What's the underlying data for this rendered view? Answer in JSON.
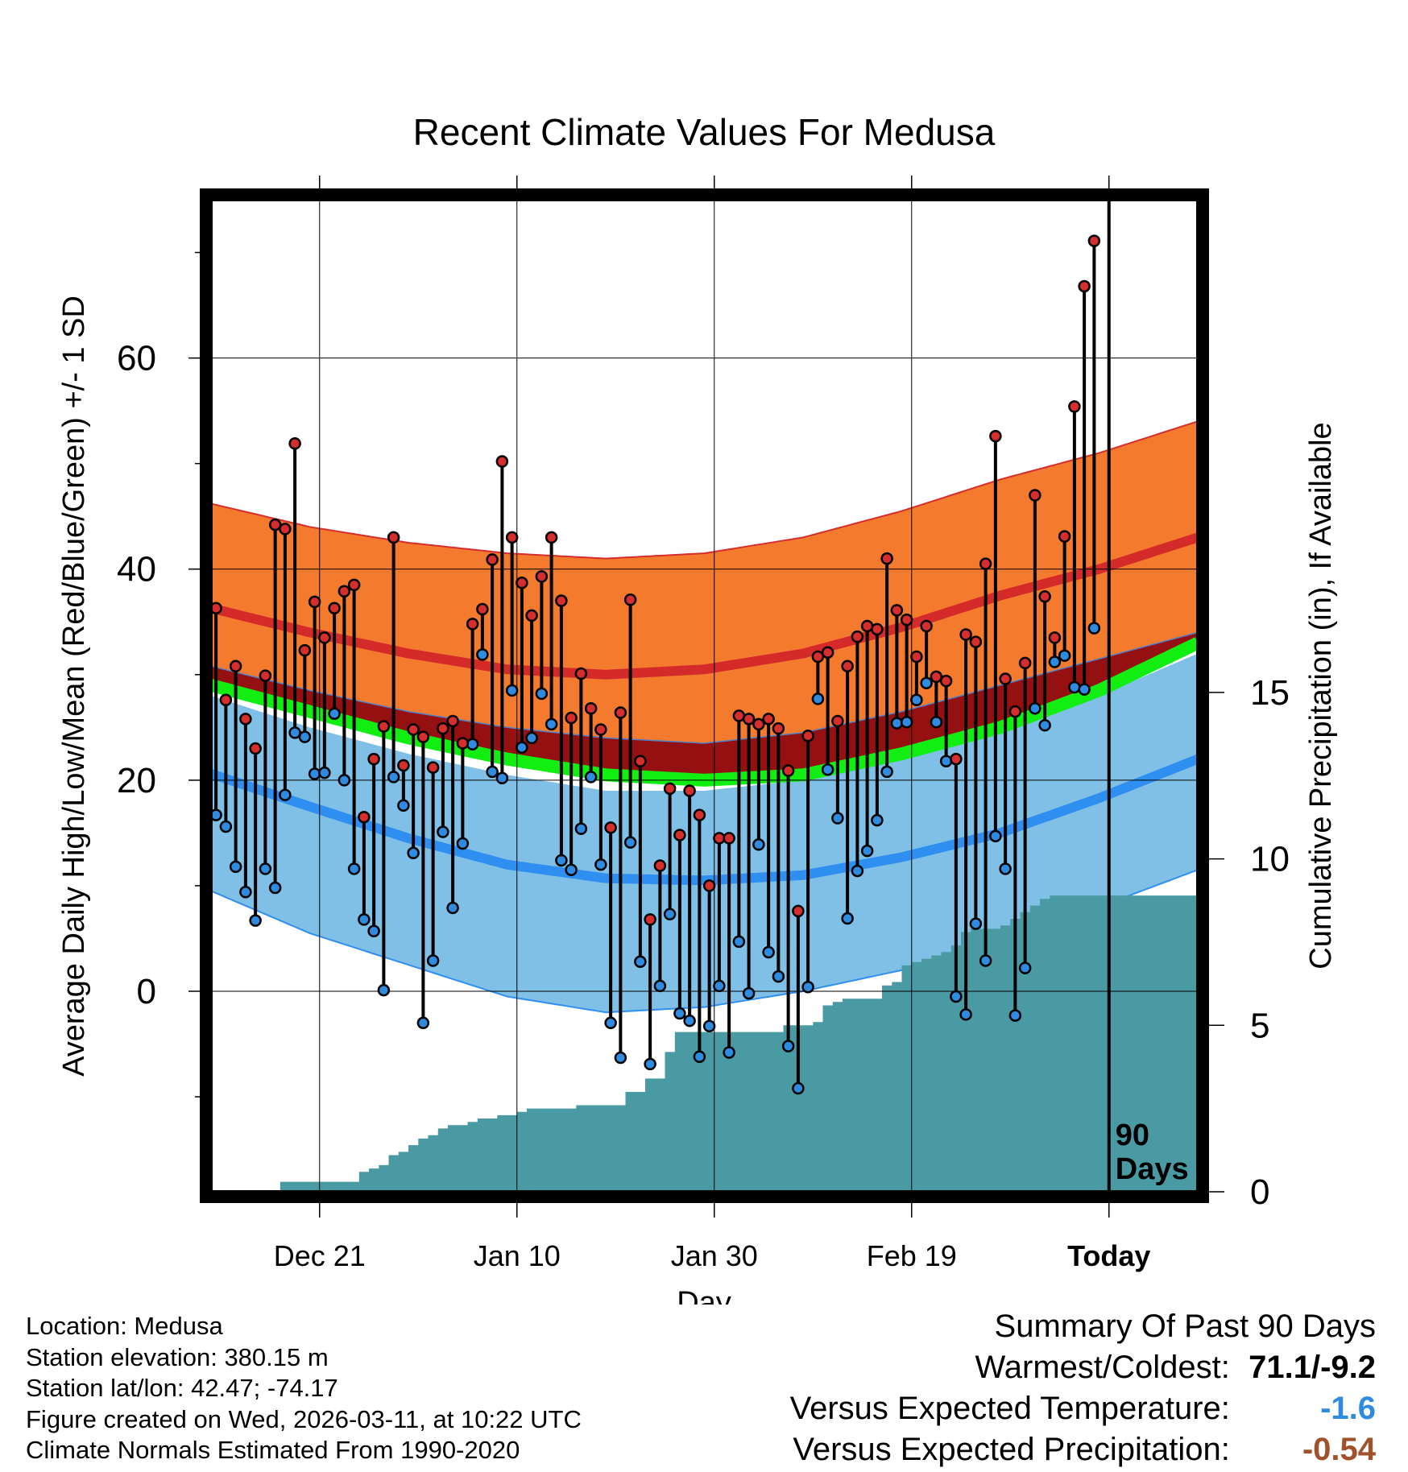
{
  "colors": {
    "high_band": "#f47b2e",
    "high_mean": "#d42a2a",
    "low_band": "#80bfe6",
    "low_mean": "#2f8ff0",
    "mean": "#12ee12",
    "overlap": "#951010",
    "precip": "#4a9aa4",
    "high_dot": "#d62d2d",
    "low_dot": "#2f8be0",
    "temp_anomaly": "#2f8be0",
    "precip_anomaly": "#a0522d"
  },
  "chart_data": {
    "type": "line",
    "title": "Recent Climate Values For Medusa",
    "xlabel": "Day",
    "ylabel": "Average Daily High/Low/Mean (Red/Blue/Green) +/- 1 SD",
    "y2label": "Cumulative Precipitation (in), If Available",
    "grid": true,
    "x_range": [
      0,
      100
    ],
    "ylim": [
      -19,
      75
    ],
    "y_ticks": [
      0,
      20,
      40,
      60
    ],
    "y2lim": [
      0,
      29.8
    ],
    "y2_ticks": [
      0,
      5,
      10,
      15
    ],
    "x_ticks": [
      {
        "day": 11,
        "label": "Dec 21"
      },
      {
        "day": 31,
        "label": "Jan 10"
      },
      {
        "day": 51,
        "label": "Jan 30"
      },
      {
        "day": 71,
        "label": "Feb 19"
      },
      {
        "day": 91,
        "label": "Today"
      }
    ],
    "today_day": 91,
    "today_label": "90\nDays",
    "normals": {
      "days": [
        0,
        10,
        20,
        30,
        40,
        50,
        60,
        70,
        80,
        90,
        100
      ],
      "high_mean": [
        36.3,
        34.0,
        32.0,
        30.5,
        30.0,
        30.5,
        32.0,
        34.5,
        37.5,
        40.0,
        43.0
      ],
      "high_sd_upper": [
        46.2,
        44.0,
        42.5,
        41.5,
        41.0,
        41.5,
        43.0,
        45.5,
        48.5,
        51.0,
        54.0
      ],
      "high_sd_lower": [
        30.8,
        28.5,
        26.5,
        25.0,
        24.0,
        23.5,
        24.5,
        26.5,
        29.0,
        31.5,
        34.0
      ],
      "mean": [
        29.0,
        26.5,
        24.0,
        22.0,
        20.5,
        20.0,
        20.5,
        22.5,
        25.0,
        28.5,
        33.0
      ],
      "low_mean": [
        20.6,
        17.5,
        14.5,
        12.0,
        10.7,
        10.5,
        11.0,
        12.7,
        15.0,
        18.3,
        22.0
      ],
      "low_sd_upper": [
        28.0,
        25.0,
        22.5,
        20.5,
        19.0,
        19.0,
        20.0,
        22.0,
        25.0,
        28.0,
        32.0
      ],
      "low_sd_lower": [
        9.5,
        5.5,
        2.5,
        -0.5,
        -2.0,
        -1.5,
        0.0,
        2.0,
        5.0,
        8.0,
        11.5
      ]
    },
    "series": [
      {
        "name": "High",
        "values": [
          36.3,
          27.6,
          30.8,
          25.8,
          23.0,
          29.9,
          44.2,
          43.8,
          51.9,
          32.3,
          36.9,
          33.5,
          36.3,
          37.9,
          38.5,
          16.5,
          22.0,
          25.1,
          43.0,
          21.4,
          24.8,
          24.1,
          21.2,
          24.9,
          25.6,
          23.5,
          34.8,
          36.2,
          40.9,
          50.2,
          43.0,
          38.7,
          35.6,
          39.3,
          43.0,
          37.0,
          25.9,
          30.1,
          26.8,
          24.8,
          15.5,
          26.4,
          37.1,
          21.8,
          6.8,
          11.9,
          19.2,
          14.8,
          19.0,
          16.7,
          10.0,
          14.5,
          14.5,
          26.1,
          25.8,
          25.3,
          25.8,
          24.9,
          20.9,
          7.6,
          24.2,
          31.7,
          32.1,
          25.6,
          30.8,
          33.6,
          34.6,
          34.3,
          41.0,
          36.1,
          35.2,
          31.7,
          34.6,
          29.8,
          29.4,
          22.0,
          33.8,
          33.1,
          40.5,
          52.6,
          29.6,
          26.5,
          31.1,
          47.0,
          37.4,
          33.5,
          43.1,
          55.4,
          66.8,
          71.1
        ]
      },
      {
        "name": "Low",
        "values": [
          16.7,
          15.6,
          11.8,
          9.4,
          6.7,
          11.6,
          9.8,
          18.6,
          24.5,
          24.1,
          20.6,
          20.7,
          26.3,
          20.0,
          11.6,
          6.8,
          5.7,
          0.1,
          20.3,
          17.6,
          13.1,
          -3.0,
          2.9,
          15.1,
          7.9,
          14.0,
          23.4,
          31.9,
          20.8,
          20.2,
          28.5,
          23.1,
          24.0,
          28.2,
          25.3,
          12.4,
          11.5,
          15.4,
          20.3,
          12.0,
          -3.0,
          -6.3,
          14.1,
          2.8,
          -6.9,
          0.5,
          7.3,
          -2.1,
          -2.8,
          -6.2,
          -3.3,
          0.5,
          -5.8,
          4.7,
          -0.2,
          13.9,
          3.7,
          1.4,
          -5.2,
          -9.2,
          0.4,
          27.7,
          21.0,
          16.4,
          6.9,
          11.4,
          13.3,
          16.2,
          20.8,
          25.4,
          25.5,
          27.6,
          29.2,
          25.5,
          21.8,
          -0.5,
          -2.2,
          6.4,
          2.9,
          14.7,
          11.6,
          -2.3,
          2.2,
          26.8,
          25.2,
          31.2,
          31.8,
          28.8,
          28.6,
          34.4
        ]
      },
      {
        "name": "Cumulative Precipitation (in)",
        "values": [
          0,
          0,
          0,
          0,
          0,
          0,
          0,
          0.3,
          0.3,
          0.3,
          0.3,
          0.3,
          0.3,
          0.3,
          0.3,
          0.6,
          0.7,
          0.8,
          1.1,
          1.2,
          1.4,
          1.6,
          1.7,
          1.9,
          2.0,
          2.0,
          2.1,
          2.2,
          2.2,
          2.3,
          2.3,
          2.4,
          2.5,
          2.5,
          2.5,
          2.5,
          2.5,
          2.6,
          2.6,
          2.6,
          2.6,
          2.6,
          3.0,
          3.0,
          3.4,
          3.4,
          4.2,
          4.8,
          4.8,
          4.8,
          4.8,
          4.8,
          4.8,
          4.8,
          4.8,
          4.8,
          4.8,
          4.8,
          5.0,
          5.0,
          5.0,
          5.1,
          5.6,
          5.7,
          5.8,
          5.8,
          5.8,
          5.8,
          6.2,
          6.3,
          6.8,
          6.9,
          7.0,
          7.1,
          7.2,
          7.4,
          7.8,
          7.9,
          7.9,
          7.9,
          8.0,
          8.2,
          8.4,
          8.6,
          8.8,
          8.9,
          8.9,
          8.9,
          8.9,
          8.9
        ]
      }
    ]
  },
  "footer": {
    "location": "Location: Medusa",
    "elevation": "Station elevation: 380.15 m",
    "latlon": "Station lat/lon: 42.47; -74.17",
    "created": "Figure created on Wed, 2026-03-11, at 10:22 UTC",
    "normals": "Climate Normals Estimated From 1990-2020"
  },
  "summary": {
    "title": "Summary Of Past 90 Days",
    "warmest_label": "Warmest/Coldest:",
    "warmest_value": "71.1/-9.2",
    "temp_label": "Versus Expected Temperature:",
    "temp_value": "-1.6",
    "precip_label": "Versus Expected Precipitation:",
    "precip_value": "-0.54"
  }
}
